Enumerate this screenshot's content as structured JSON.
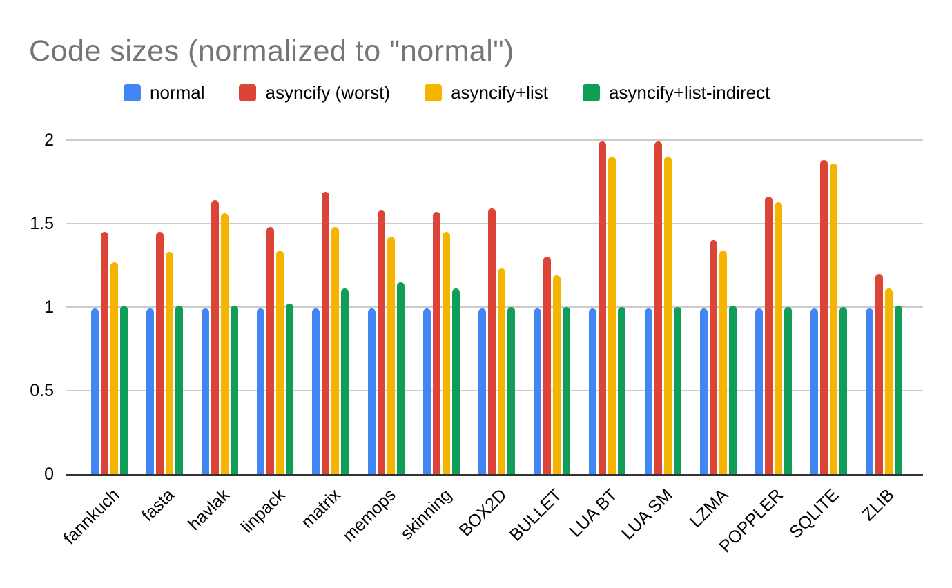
{
  "page": {
    "background": "#ffffff"
  },
  "chart_data": {
    "type": "bar",
    "title": "Code sizes (normalized to \"normal\")",
    "xlabel": "",
    "ylabel": "",
    "ylim": [
      0,
      2
    ],
    "yticks": [
      0,
      0.5,
      1,
      1.5,
      2
    ],
    "grid": true,
    "legend_position": "top",
    "x_tick_rotation_deg": 45,
    "categories": [
      "fannkuch",
      "fasta",
      "havlak",
      "linpack",
      "matrix",
      "memops",
      "skinning",
      "BOX2D",
      "BULLET",
      "LUA BT",
      "LUA SM",
      "LZMA",
      "POPPLER",
      "SQLITE",
      "ZLIB"
    ],
    "series": [
      {
        "name": "normal",
        "color": "#4285F4",
        "values": [
          0.99,
          0.99,
          0.99,
          0.99,
          0.99,
          0.99,
          0.99,
          0.99,
          0.99,
          0.99,
          0.99,
          0.99,
          0.99,
          0.99,
          0.99
        ]
      },
      {
        "name": "asyncify (worst)",
        "color": "#DB4437",
        "values": [
          1.45,
          1.45,
          1.64,
          1.48,
          1.69,
          1.58,
          1.57,
          1.59,
          1.3,
          1.99,
          1.99,
          1.4,
          1.66,
          1.88,
          1.2
        ]
      },
      {
        "name": "asyncify+list",
        "color": "#F4B400",
        "values": [
          1.27,
          1.33,
          1.56,
          1.34,
          1.48,
          1.42,
          1.45,
          1.23,
          1.19,
          1.9,
          1.9,
          1.34,
          1.63,
          1.86,
          1.11
        ]
      },
      {
        "name": "asyncify+list-indirect",
        "color": "#0F9D58",
        "values": [
          1.01,
          1.01,
          1.01,
          1.02,
          1.11,
          1.15,
          1.11,
          1.0,
          1.0,
          1.0,
          1.0,
          1.01,
          1.0,
          1.0,
          1.01
        ]
      }
    ],
    "colors": {
      "title": "#757575",
      "gridline": "#cccccc",
      "axis_line": "#333333",
      "tick_text": "#000000",
      "background": "#ffffff"
    }
  }
}
